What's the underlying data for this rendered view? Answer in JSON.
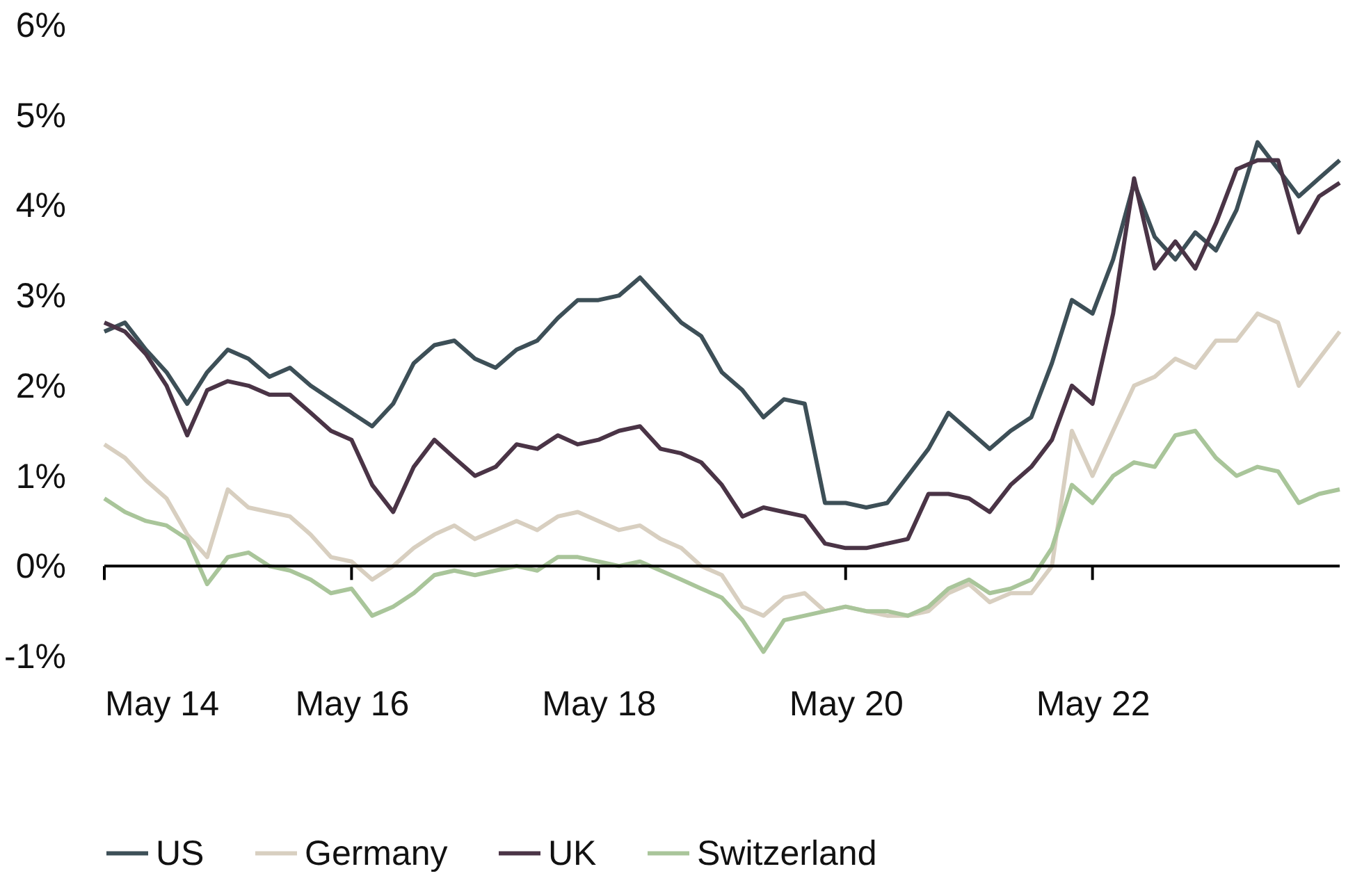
{
  "chart_data": {
    "type": "line",
    "x": [
      "2014-05",
      "2014-07",
      "2014-09",
      "2014-11",
      "2015-01",
      "2015-03",
      "2015-05",
      "2015-07",
      "2015-09",
      "2015-11",
      "2016-01",
      "2016-03",
      "2016-05",
      "2016-07",
      "2016-09",
      "2016-11",
      "2017-01",
      "2017-03",
      "2017-05",
      "2017-07",
      "2017-09",
      "2017-11",
      "2018-01",
      "2018-03",
      "2018-05",
      "2018-07",
      "2018-09",
      "2018-11",
      "2019-01",
      "2019-03",
      "2019-05",
      "2019-07",
      "2019-09",
      "2019-11",
      "2020-01",
      "2020-03",
      "2020-05",
      "2020-07",
      "2020-09",
      "2020-11",
      "2021-01",
      "2021-03",
      "2021-05",
      "2021-07",
      "2021-09",
      "2021-11",
      "2022-01",
      "2022-03",
      "2022-05",
      "2022-07",
      "2022-09",
      "2022-11",
      "2023-01",
      "2023-03",
      "2023-05",
      "2023-07",
      "2023-09",
      "2023-11",
      "2024-01",
      "2024-03",
      "2024-05"
    ],
    "series": [
      {
        "name": "US",
        "color": "#3d4f57",
        "values": [
          2.6,
          2.7,
          2.4,
          2.15,
          1.8,
          2.15,
          2.4,
          2.3,
          2.1,
          2.2,
          2.0,
          1.85,
          1.7,
          1.55,
          1.8,
          2.25,
          2.45,
          2.5,
          2.3,
          2.2,
          2.4,
          2.5,
          2.75,
          2.95,
          2.95,
          3.0,
          3.2,
          2.95,
          2.7,
          2.55,
          2.15,
          1.95,
          1.65,
          1.85,
          1.8,
          0.7,
          0.7,
          0.65,
          0.7,
          1.0,
          1.3,
          1.7,
          1.5,
          1.3,
          1.5,
          1.65,
          2.25,
          2.95,
          2.8,
          3.4,
          4.25,
          3.65,
          3.4,
          3.7,
          3.5,
          3.95,
          4.7,
          4.4,
          4.1,
          4.3,
          4.5
        ]
      },
      {
        "name": "Germany",
        "color": "#d8cfc0",
        "values": [
          1.35,
          1.2,
          0.95,
          0.75,
          0.35,
          0.1,
          0.85,
          0.65,
          0.6,
          0.55,
          0.35,
          0.1,
          0.05,
          -0.15,
          0.0,
          0.2,
          0.35,
          0.45,
          0.3,
          0.4,
          0.5,
          0.4,
          0.55,
          0.6,
          0.5,
          0.4,
          0.45,
          0.3,
          0.2,
          0.0,
          -0.1,
          -0.45,
          -0.55,
          -0.35,
          -0.3,
          -0.5,
          -0.45,
          -0.5,
          -0.55,
          -0.55,
          -0.5,
          -0.3,
          -0.2,
          -0.4,
          -0.3,
          -0.3,
          0.0,
          1.5,
          1.0,
          1.5,
          2.0,
          2.1,
          2.3,
          2.2,
          2.5,
          2.5,
          2.8,
          2.7,
          2.0,
          2.3,
          2.6
        ]
      },
      {
        "name": "UK",
        "color": "#4a3446",
        "values": [
          2.7,
          2.6,
          2.35,
          2.0,
          1.45,
          1.95,
          2.05,
          2.0,
          1.9,
          1.9,
          1.7,
          1.5,
          1.4,
          0.9,
          0.6,
          1.1,
          1.4,
          1.2,
          1.0,
          1.1,
          1.35,
          1.3,
          1.45,
          1.35,
          1.4,
          1.5,
          1.55,
          1.3,
          1.25,
          1.15,
          0.9,
          0.55,
          0.65,
          0.6,
          0.55,
          0.25,
          0.2,
          0.2,
          0.25,
          0.3,
          0.8,
          0.8,
          0.75,
          0.6,
          0.9,
          1.1,
          1.4,
          2.0,
          1.8,
          2.8,
          4.3,
          3.3,
          3.6,
          3.3,
          3.8,
          4.4,
          4.5,
          4.5,
          3.7,
          4.1,
          4.25
        ]
      },
      {
        "name": "Switzerland",
        "color": "#a9c59a",
        "values": [
          0.75,
          0.6,
          0.5,
          0.45,
          0.3,
          -0.2,
          0.1,
          0.15,
          0.0,
          -0.05,
          -0.15,
          -0.3,
          -0.25,
          -0.55,
          -0.45,
          -0.3,
          -0.1,
          -0.05,
          -0.1,
          -0.05,
          0.0,
          -0.05,
          0.1,
          0.1,
          0.05,
          0.0,
          0.05,
          -0.05,
          -0.15,
          -0.25,
          -0.35,
          -0.6,
          -0.95,
          -0.6,
          -0.55,
          -0.5,
          -0.45,
          -0.5,
          -0.5,
          -0.55,
          -0.45,
          -0.25,
          -0.15,
          -0.3,
          -0.25,
          -0.15,
          0.2,
          0.9,
          0.7,
          1.0,
          1.15,
          1.1,
          1.45,
          1.5,
          1.2,
          1.0,
          1.1,
          1.05,
          0.7,
          0.8,
          0.85
        ]
      }
    ],
    "xlim": [
      "2014-05",
      "2024-05"
    ],
    "xticks": [
      {
        "value": "2014-05",
        "label": "May 14"
      },
      {
        "value": "2016-05",
        "label": "May 16"
      },
      {
        "value": "2018-05",
        "label": "May 18"
      },
      {
        "value": "2020-05",
        "label": "May 20"
      },
      {
        "value": "2022-05",
        "label": "May 22"
      }
    ],
    "ylim": [
      -1,
      6
    ],
    "yticks": [
      {
        "value": -1,
        "label": "-1%"
      },
      {
        "value": 0,
        "label": "0%"
      },
      {
        "value": 1,
        "label": "1%"
      },
      {
        "value": 2,
        "label": "2%"
      },
      {
        "value": 3,
        "label": "3%"
      },
      {
        "value": 4,
        "label": "4%"
      },
      {
        "value": 5,
        "label": "5%"
      },
      {
        "value": 6,
        "label": "6%"
      }
    ],
    "legend": "bottom"
  }
}
